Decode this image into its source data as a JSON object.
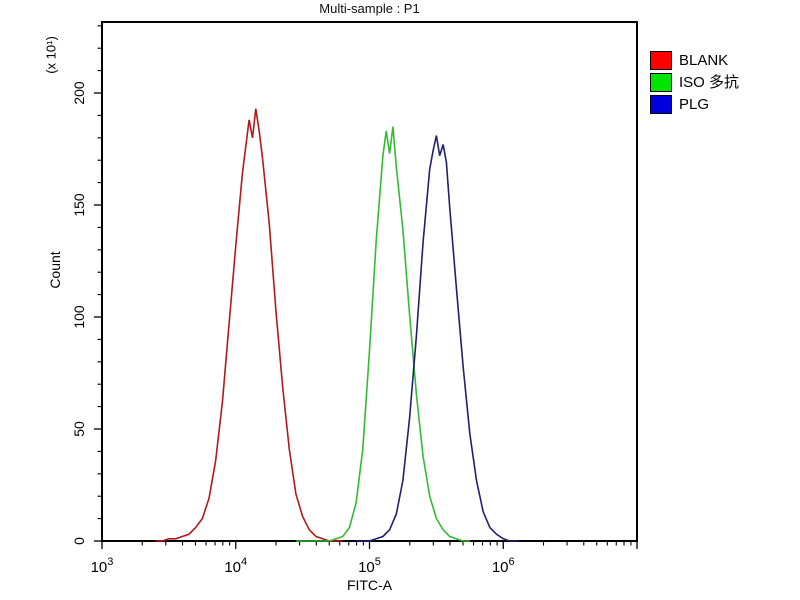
{
  "window": {
    "title": "Multi-sample : P1"
  },
  "chart_data": {
    "type": "line",
    "subtype": "flow-cytometry-histogram-overlay",
    "title": "Multi-sample : P1",
    "xlabel": "FITC-A",
    "ylabel": "Count",
    "y_axis_multiplier": "(x 10¹)",
    "x_scale": "log",
    "x_log_range": [
      3,
      7
    ],
    "x_labeled_tick_exponents": [
      3,
      4,
      5,
      6
    ],
    "x_tick_base": "10",
    "ylim": [
      0,
      232
    ],
    "y_major_ticks": [
      0,
      50,
      100,
      150,
      200
    ],
    "y_minor_step": 10,
    "grid": false,
    "plot_border_color": "#000000",
    "background_color": "#ffffff",
    "legend_position": "right",
    "legend": [
      {
        "label": "BLANK",
        "swatch_color": "#ff0000"
      },
      {
        "label": "ISO 多抗",
        "swatch_color": "#00e400"
      },
      {
        "label": "PLG",
        "swatch_color": "#0000dd"
      }
    ],
    "series": [
      {
        "name": "BLANK",
        "color": "#b11a1a",
        "peak_x": 14000,
        "peak_count": 193,
        "points": [
          [
            3.4,
            0
          ],
          [
            3.45,
            0
          ],
          [
            3.5,
            1
          ],
          [
            3.55,
            1
          ],
          [
            3.6,
            2
          ],
          [
            3.65,
            3
          ],
          [
            3.7,
            6
          ],
          [
            3.75,
            10
          ],
          [
            3.8,
            19
          ],
          [
            3.85,
            36
          ],
          [
            3.9,
            62
          ],
          [
            3.95,
            97
          ],
          [
            4.0,
            132
          ],
          [
            4.05,
            164
          ],
          [
            4.1,
            188
          ],
          [
            4.125,
            180
          ],
          [
            4.15,
            193
          ],
          [
            4.175,
            183
          ],
          [
            4.2,
            171
          ],
          [
            4.25,
            142
          ],
          [
            4.3,
            103
          ],
          [
            4.35,
            69
          ],
          [
            4.4,
            41
          ],
          [
            4.45,
            21
          ],
          [
            4.5,
            11
          ],
          [
            4.55,
            5
          ],
          [
            4.6,
            2
          ],
          [
            4.65,
            1
          ],
          [
            4.7,
            0
          ],
          [
            4.8,
            0
          ]
        ]
      },
      {
        "name": "ISO 多抗",
        "color": "#33bb33",
        "peak_x": 150000,
        "peak_count": 185,
        "points": [
          [
            4.45,
            0
          ],
          [
            4.55,
            0
          ],
          [
            4.65,
            0
          ],
          [
            4.7,
            0
          ],
          [
            4.75,
            1
          ],
          [
            4.8,
            2
          ],
          [
            4.85,
            6
          ],
          [
            4.9,
            17
          ],
          [
            4.95,
            41
          ],
          [
            5.0,
            85
          ],
          [
            5.05,
            134
          ],
          [
            5.1,
            172
          ],
          [
            5.125,
            183
          ],
          [
            5.15,
            173
          ],
          [
            5.175,
            185
          ],
          [
            5.2,
            167
          ],
          [
            5.25,
            139
          ],
          [
            5.3,
            101
          ],
          [
            5.35,
            66
          ],
          [
            5.4,
            38
          ],
          [
            5.45,
            20
          ],
          [
            5.5,
            10
          ],
          [
            5.55,
            5
          ],
          [
            5.6,
            2
          ],
          [
            5.65,
            1
          ],
          [
            5.7,
            0
          ],
          [
            5.75,
            0
          ]
        ]
      },
      {
        "name": "PLG",
        "color": "#202070",
        "peak_x": 320000,
        "peak_count": 181,
        "points": [
          [
            4.9,
            0
          ],
          [
            5.0,
            0
          ],
          [
            5.05,
            1
          ],
          [
            5.1,
            2
          ],
          [
            5.15,
            5
          ],
          [
            5.2,
            12
          ],
          [
            5.25,
            27
          ],
          [
            5.3,
            55
          ],
          [
            5.35,
            91
          ],
          [
            5.4,
            133
          ],
          [
            5.45,
            166
          ],
          [
            5.475,
            174
          ],
          [
            5.5,
            181
          ],
          [
            5.525,
            172
          ],
          [
            5.55,
            177
          ],
          [
            5.575,
            169
          ],
          [
            5.6,
            149
          ],
          [
            5.65,
            113
          ],
          [
            5.7,
            78
          ],
          [
            5.75,
            48
          ],
          [
            5.8,
            27
          ],
          [
            5.85,
            13
          ],
          [
            5.9,
            6
          ],
          [
            5.95,
            3
          ],
          [
            6.0,
            1
          ],
          [
            6.05,
            0
          ],
          [
            6.12,
            0
          ]
        ]
      }
    ]
  }
}
